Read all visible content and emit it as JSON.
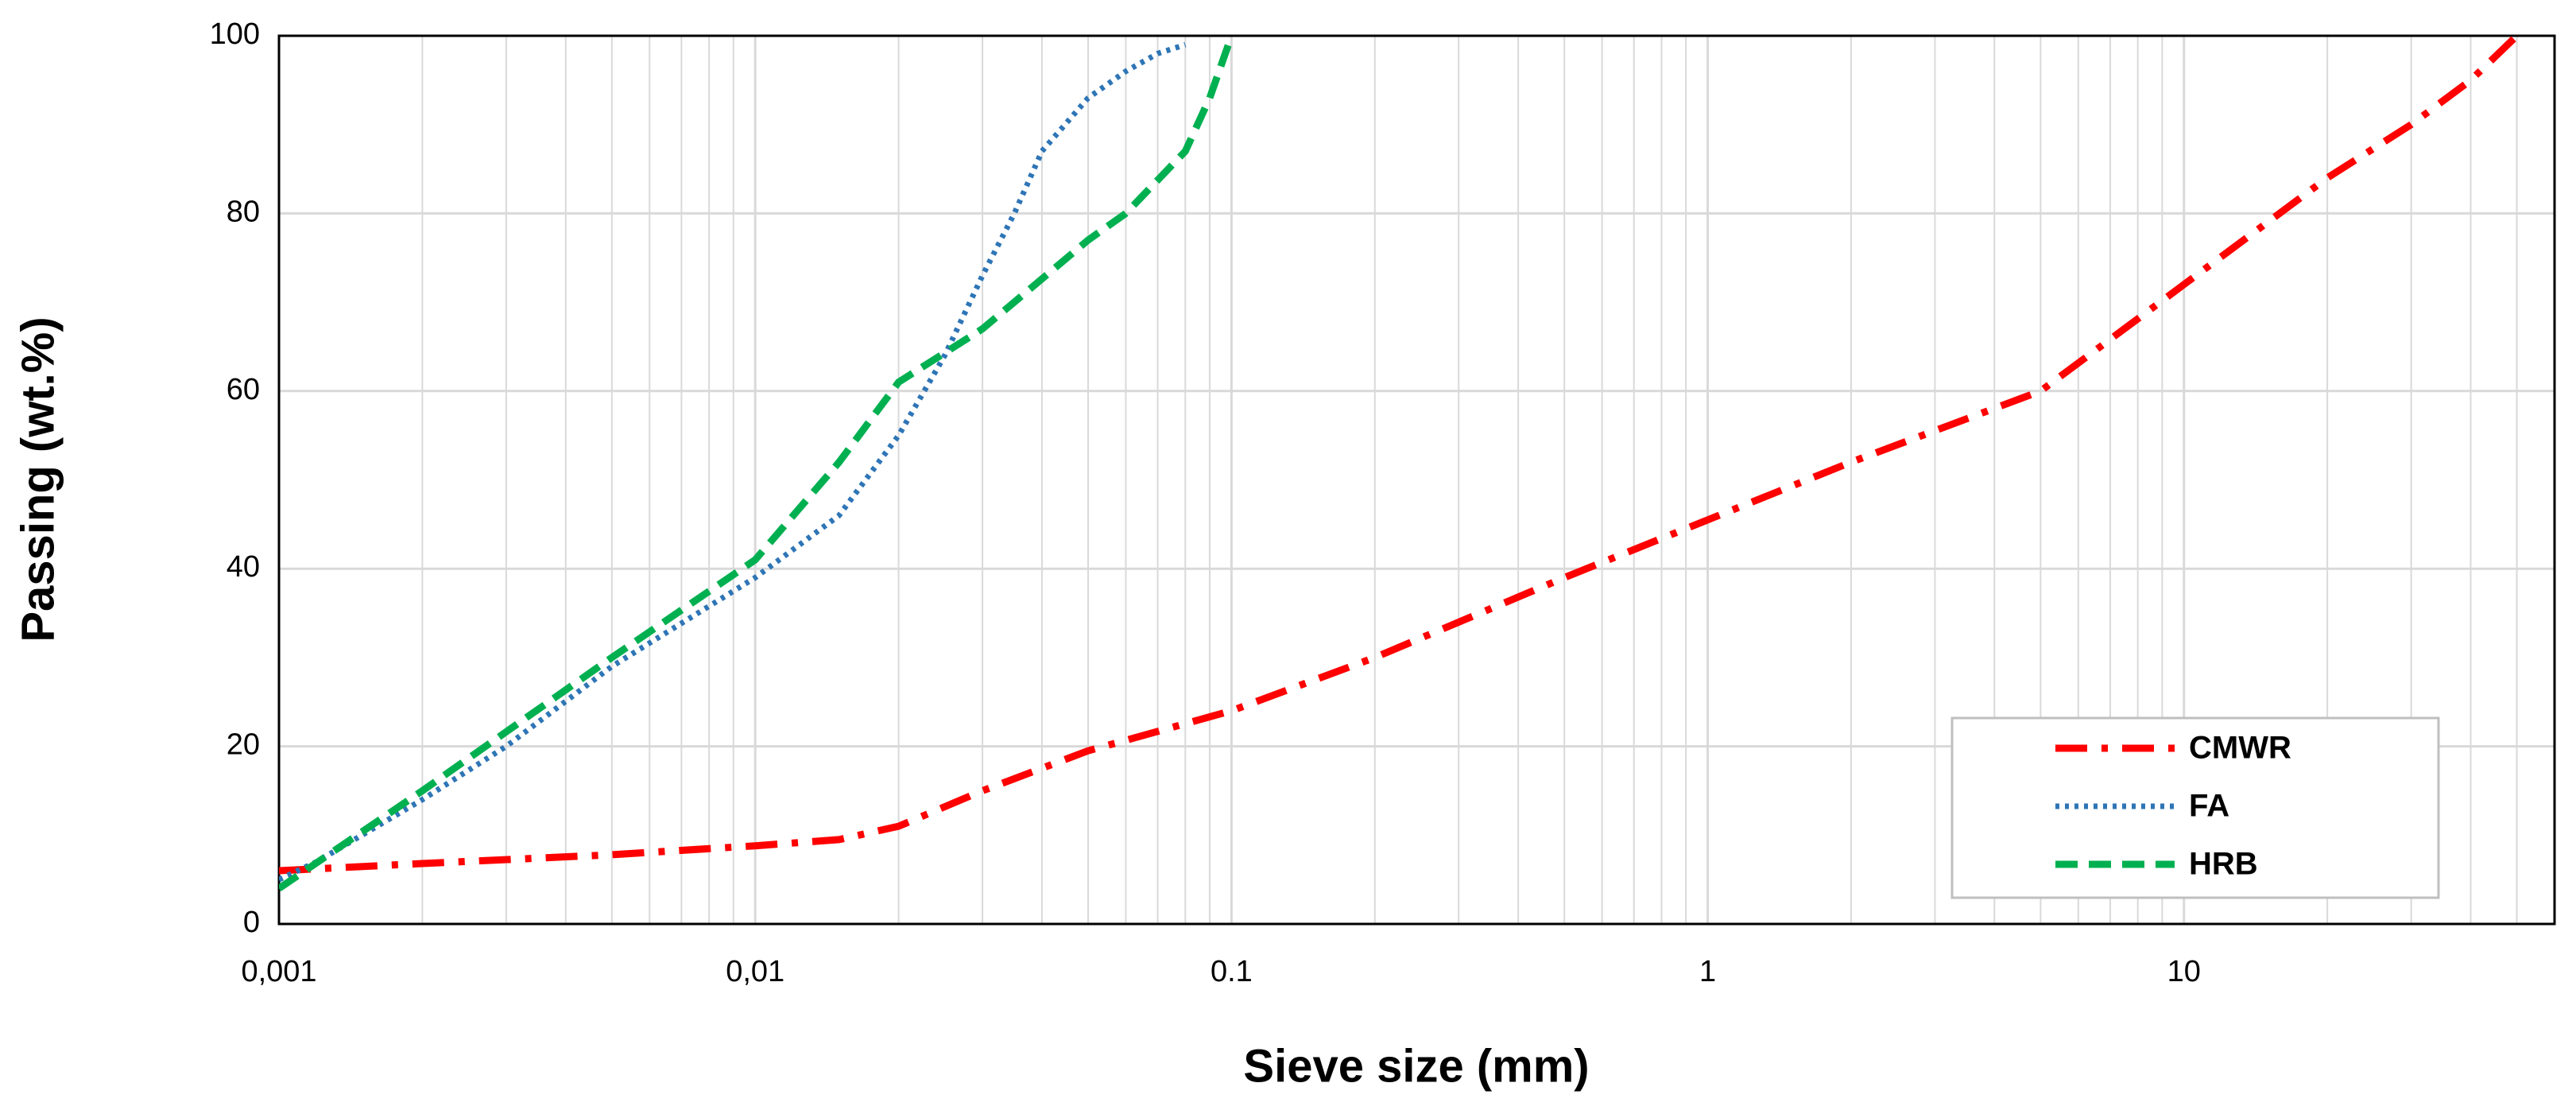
{
  "chart_data": {
    "type": "line",
    "xlabel": "Sieve size (mm)",
    "ylabel": "Passing (wt.%)",
    "xscale": "log",
    "grid": true,
    "legend": "lower right",
    "xlim": [
      0.001,
      60
    ],
    "ylim": [
      0,
      100
    ],
    "xticks": [
      {
        "value": 0.001,
        "label": "0,001"
      },
      {
        "value": 0.01,
        "label": "0,01"
      },
      0.1,
      1,
      10
    ],
    "yticks": [
      0,
      20,
      40,
      60,
      80,
      100
    ],
    "series": [
      {
        "name": "CMWR",
        "color": "#ff0000",
        "style": "dashdot",
        "x": [
          0.001,
          0.002,
          0.005,
          0.01,
          0.015,
          0.02,
          0.03,
          0.05,
          0.1,
          0.2,
          0.5,
          1,
          2,
          5,
          10,
          20,
          30,
          40,
          50
        ],
        "values": [
          6,
          6.8,
          7.8,
          8.8,
          9.5,
          11,
          15,
          19.5,
          24,
          30,
          39,
          45.5,
          52,
          60,
          72,
          84,
          90,
          95,
          100
        ]
      },
      {
        "name": "FA",
        "color": "#2e75b6",
        "style": "dotted",
        "x": [
          0.001,
          0.0012,
          0.002,
          0.003,
          0.005,
          0.01,
          0.015,
          0.02,
          0.025,
          0.03,
          0.035,
          0.04,
          0.05,
          0.06,
          0.07,
          0.08
        ],
        "values": [
          5,
          7,
          14,
          20,
          29,
          39,
          46,
          55,
          64,
          73,
          80,
          87,
          93,
          96,
          98,
          99
        ]
      },
      {
        "name": "HRB",
        "color": "#00b050",
        "style": "dashed",
        "x": [
          0.001,
          0.002,
          0.005,
          0.01,
          0.015,
          0.02,
          0.03,
          0.05,
          0.06,
          0.08,
          0.09,
          0.1
        ],
        "values": [
          4,
          15,
          30,
          41,
          52,
          61,
          67,
          77,
          80,
          87,
          93,
          100
        ]
      }
    ]
  }
}
